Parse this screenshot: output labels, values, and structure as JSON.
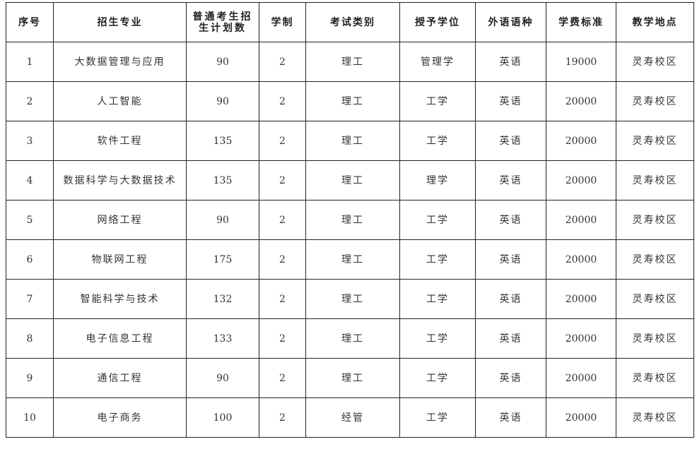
{
  "table": {
    "headers": [
      "序号",
      "招生专业",
      "普通考生招生计划数",
      "学制",
      "考试类别",
      "授予学位",
      "外语语种",
      "学费标准",
      "教学地点"
    ],
    "rows": [
      [
        "1",
        "大数据管理与应用",
        "90",
        "2",
        "理工",
        "管理学",
        "英语",
        "19000",
        "灵寿校区"
      ],
      [
        "2",
        "人工智能",
        "90",
        "2",
        "理工",
        "工学",
        "英语",
        "20000",
        "灵寿校区"
      ],
      [
        "3",
        "软件工程",
        "135",
        "2",
        "理工",
        "工学",
        "英语",
        "20000",
        "灵寿校区"
      ],
      [
        "4",
        "数据科学与大数据技术",
        "135",
        "2",
        "理工",
        "理学",
        "英语",
        "20000",
        "灵寿校区"
      ],
      [
        "5",
        "网络工程",
        "90",
        "2",
        "理工",
        "工学",
        "英语",
        "20000",
        "灵寿校区"
      ],
      [
        "6",
        "物联网工程",
        "175",
        "2",
        "理工",
        "工学",
        "英语",
        "20000",
        "灵寿校区"
      ],
      [
        "7",
        "智能科学与技术",
        "132",
        "2",
        "理工",
        "工学",
        "英语",
        "20000",
        "灵寿校区"
      ],
      [
        "8",
        "电子信息工程",
        "133",
        "2",
        "理工",
        "工学",
        "英语",
        "20000",
        "灵寿校区"
      ],
      [
        "9",
        "通信工程",
        "90",
        "2",
        "理工",
        "工学",
        "英语",
        "20000",
        "灵寿校区"
      ],
      [
        "10",
        "电子商务",
        "100",
        "2",
        "经管",
        "工学",
        "英语",
        "20000",
        "灵寿校区"
      ]
    ]
  }
}
